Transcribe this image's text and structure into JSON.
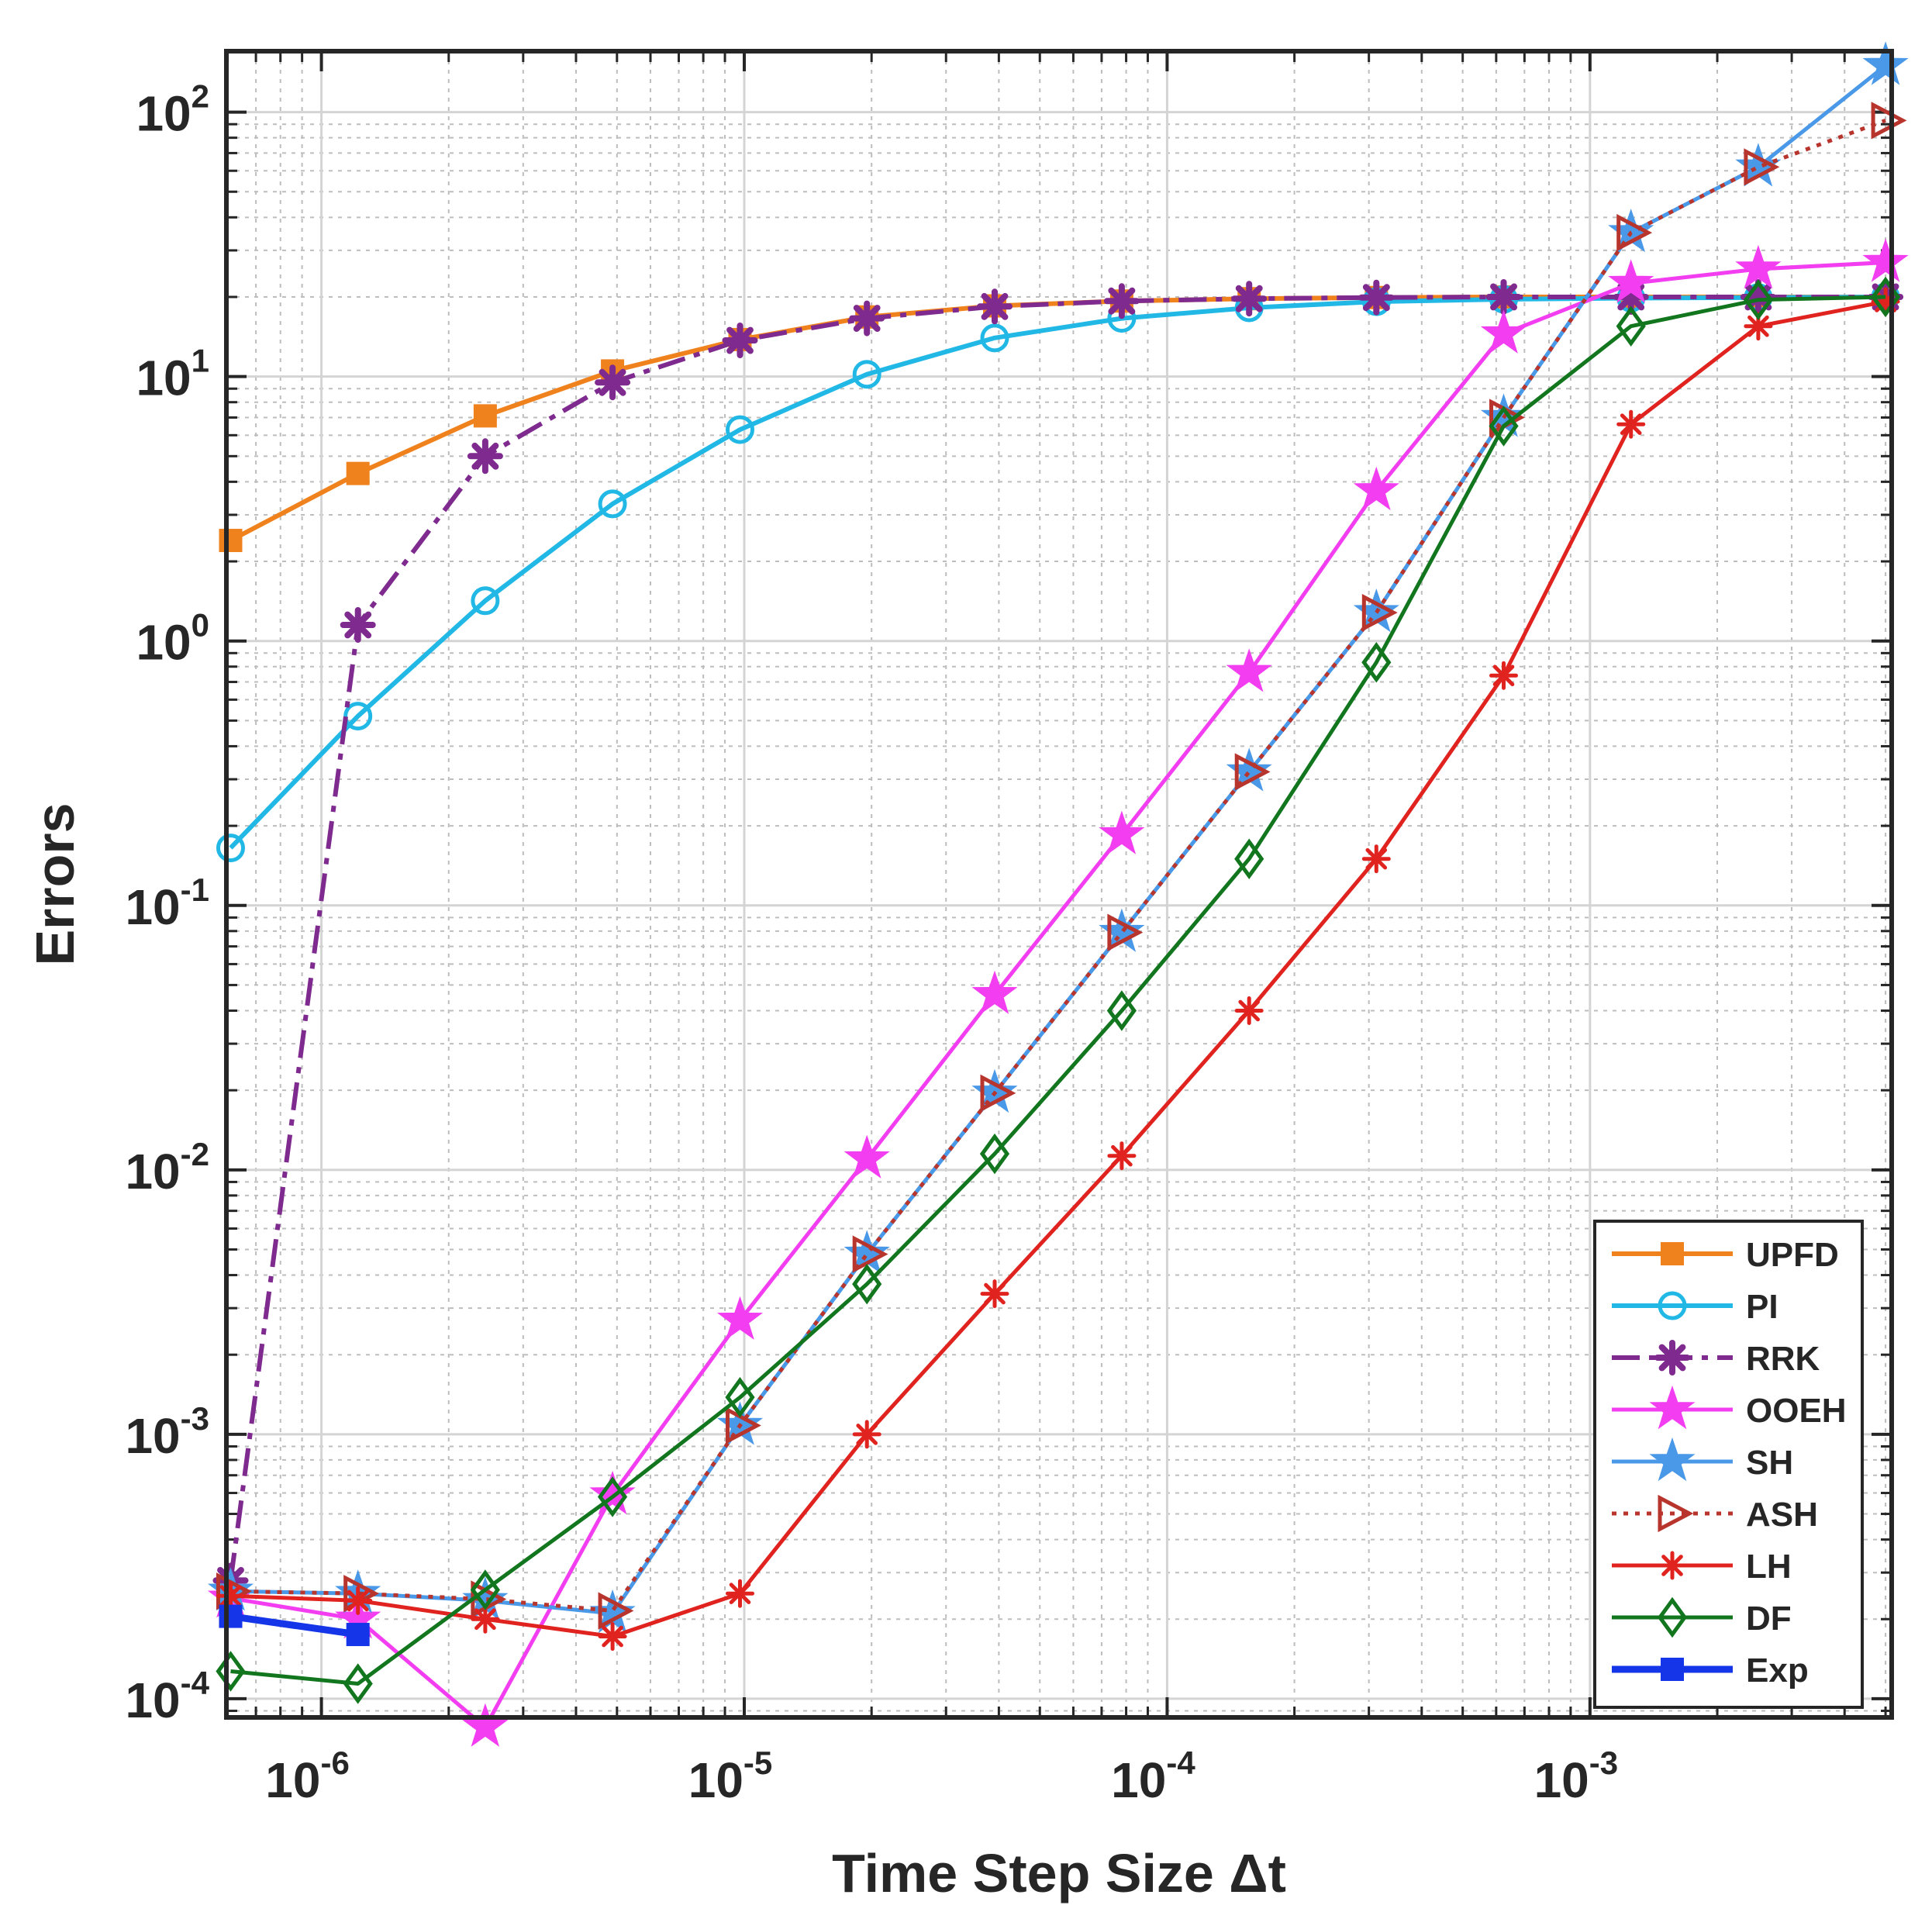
{
  "chart_data": {
    "type": "line",
    "title": "",
    "xlabel": "Time Step Size Δt",
    "ylabel": "Errors",
    "x_scale": "log",
    "y_scale": "log",
    "xlim": [
      5.96e-07,
      0.00517
    ],
    "ylim": [
      8.5e-05,
      170
    ],
    "grid": true,
    "minor_grid": true,
    "legend_position": "bottom-right",
    "x_ticks": [
      {
        "base": "10",
        "exp": "-6",
        "value": 1e-06
      },
      {
        "base": "10",
        "exp": "-5",
        "value": 1e-05
      },
      {
        "base": "10",
        "exp": "-4",
        "value": 0.0001
      },
      {
        "base": "10",
        "exp": "-3",
        "value": 0.001
      }
    ],
    "y_ticks": [
      {
        "base": "10",
        "exp": "-4",
        "value": 0.0001
      },
      {
        "base": "10",
        "exp": "-3",
        "value": 0.001
      },
      {
        "base": "10",
        "exp": "-2",
        "value": 0.01
      },
      {
        "base": "10",
        "exp": "-1",
        "value": 0.1
      },
      {
        "base": "10",
        "exp": "0",
        "value": 1
      },
      {
        "base": "10",
        "exp": "1",
        "value": 10
      },
      {
        "base": "10",
        "exp": "2",
        "value": 100
      }
    ],
    "x": [
      6.1e-07,
      1.22e-06,
      2.44e-06,
      4.88e-06,
      9.77e-06,
      1.95e-05,
      3.91e-05,
      7.81e-05,
      0.0001563,
      0.0003125,
      0.000625,
      0.00125,
      0.0025,
      0.005
    ],
    "series": [
      {
        "name": "UPFD",
        "color": "#f0821e",
        "dash": "solid",
        "width": 6,
        "marker": "square-filled",
        "values": [
          2.4,
          4.3,
          7.1,
          10.5,
          13.8,
          16.8,
          18.5,
          19.3,
          19.7,
          19.9,
          20.0,
          20.0,
          20.0,
          20.0
        ]
      },
      {
        "name": "PI",
        "color": "#21b8e6",
        "dash": "solid",
        "width": 6,
        "marker": "circle",
        "values": [
          0.165,
          0.52,
          1.42,
          3.3,
          6.3,
          10.2,
          14.0,
          16.6,
          18.2,
          19.2,
          19.6,
          19.8,
          19.9,
          20.0
        ]
      },
      {
        "name": "RRK",
        "color": "#7e2a8e",
        "dash": "dashdot",
        "width": 6,
        "marker": "asterisk-bold",
        "values": [
          0.00028,
          1.15,
          5.0,
          9.5,
          13.7,
          16.6,
          18.4,
          19.3,
          19.7,
          19.9,
          20.0,
          20.0,
          20.0,
          20.0
        ]
      },
      {
        "name": "OOEH",
        "color": "#f23ef0",
        "dash": "solid",
        "width": 5,
        "marker": "star-filled",
        "values": [
          0.00024,
          0.0002,
          7.8e-05,
          0.00059,
          0.0027,
          0.011,
          0.046,
          0.185,
          0.76,
          3.7,
          14.5,
          22.5,
          25.5,
          27.0
        ]
      },
      {
        "name": "SH",
        "color": "#4a98e8",
        "dash": "solid",
        "width": 5,
        "marker": "star-filled",
        "values": [
          0.000255,
          0.00025,
          0.000235,
          0.00021,
          0.00108,
          0.0048,
          0.0195,
          0.079,
          0.32,
          1.28,
          7.0,
          35.0,
          62.0,
          150.0
        ]
      },
      {
        "name": "ASH",
        "color": "#b8352e",
        "dash": "dotted",
        "width": 5,
        "marker": "triangle-right",
        "values": [
          0.000255,
          0.00025,
          0.000238,
          0.000215,
          0.00108,
          0.0048,
          0.0195,
          0.079,
          0.32,
          1.28,
          7.0,
          35.0,
          62.0,
          93.0
        ]
      },
      {
        "name": "LH",
        "color": "#e0231f",
        "dash": "solid",
        "width": 5,
        "marker": "asterisk",
        "values": [
          0.000245,
          0.000235,
          0.0002,
          0.000172,
          0.00025,
          0.001,
          0.0034,
          0.0113,
          0.04,
          0.15,
          0.74,
          6.6,
          15.5,
          19.2
        ]
      },
      {
        "name": "DF",
        "color": "#12761e",
        "dash": "solid",
        "width": 5,
        "marker": "diamond",
        "values": [
          0.000127,
          0.000114,
          0.000258,
          0.00058,
          0.00138,
          0.0037,
          0.0115,
          0.04,
          0.15,
          0.83,
          6.5,
          15.5,
          19.5,
          20.0
        ]
      },
      {
        "name": "Exp",
        "color": "#1535e8",
        "dash": "solid",
        "width": 9,
        "marker": "square-filled",
        "values": [
          0.000205,
          0.000175,
          null,
          null,
          null,
          null,
          null,
          null,
          null,
          null,
          null,
          null,
          null,
          null
        ]
      }
    ]
  }
}
